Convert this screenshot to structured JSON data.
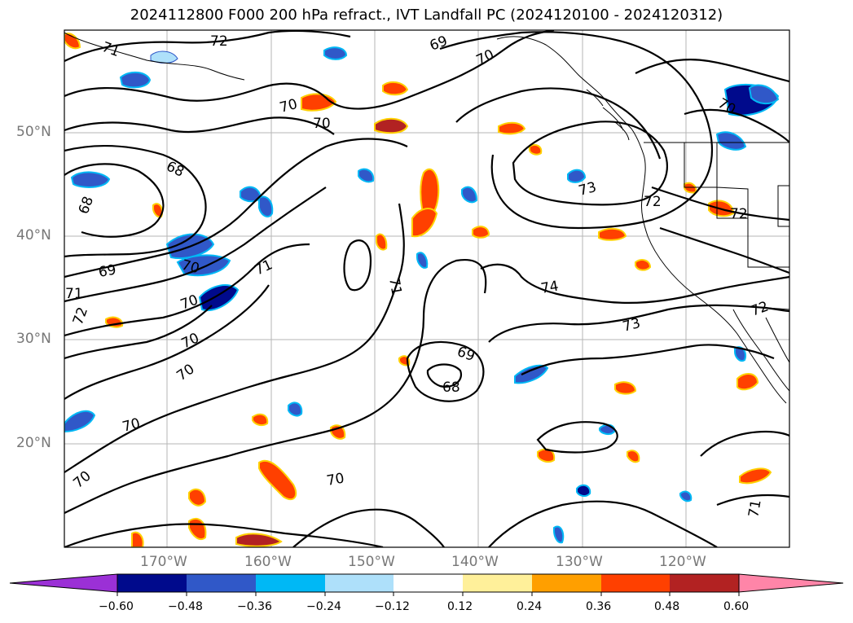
{
  "title": "2024112800 F000 200 hPa refract., IVT Landfall PC (2024120100 - 2024120312)",
  "lat_labels": [
    "50°N",
    "40°N",
    "30°N",
    "20°N"
  ],
  "lon_labels": [
    "170°W",
    "160°W",
    "150°W",
    "140°W",
    "130°W",
    "120°W"
  ],
  "contour_labels": [
    "71",
    "72",
    "69",
    "70",
    "70",
    "70",
    "68",
    "68",
    "69",
    "71",
    "71",
    "72",
    "70",
    "70",
    "70",
    "70",
    "70",
    "70",
    "70",
    "71",
    "73",
    "72",
    "69",
    "68",
    "74",
    "73",
    "72",
    "72",
    "70",
    "71"
  ],
  "colorbar": {
    "ticks": [
      "−0.60",
      "−0.48",
      "−0.36",
      "−0.24",
      "−0.12",
      "0.12",
      "0.24",
      "0.36",
      "0.48",
      "0.60"
    ],
    "under_color": "#9b30d6",
    "over_color": "#ff85a8",
    "colors": [
      "#000a8c",
      "#3058c8",
      "#00b8f5",
      "#aee0fa",
      "#ffffff",
      "#fff09a",
      "#ff9f00",
      "#ff4000",
      "#b22222"
    ]
  },
  "shading_colors": {
    "negative_core": "#000a8c",
    "negative": "#3058c8",
    "negative_edge": "#00b8f5",
    "positive_core": "#b22222",
    "positive": "#ff4000",
    "positive_edge": "#ffd000"
  }
}
